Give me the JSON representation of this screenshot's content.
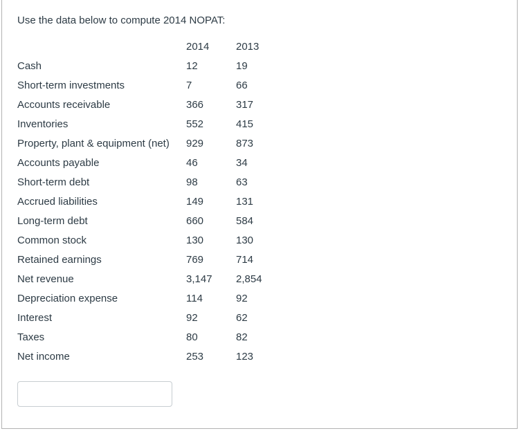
{
  "question": {
    "prompt": "Use the data below to compute 2014 NOPAT:"
  },
  "table": {
    "columns": [
      "",
      "2014",
      "2013"
    ],
    "rows": [
      {
        "label": "Cash",
        "y2014": "12",
        "y2013": "19"
      },
      {
        "label": "Short-term investments",
        "y2014": "7",
        "y2013": "66"
      },
      {
        "label": "Accounts receivable",
        "y2014": "366",
        "y2013": "317"
      },
      {
        "label": "Inventories",
        "y2014": "552",
        "y2013": "415"
      },
      {
        "label": "Property, plant & equipment (net)",
        "y2014": "929",
        "y2013": "873"
      },
      {
        "label": "Accounts payable",
        "y2014": "46",
        "y2013": "34"
      },
      {
        "label": "Short-term debt",
        "y2014": "98",
        "y2013": "63"
      },
      {
        "label": "Accrued liabilities",
        "y2014": "149",
        "y2013": "131"
      },
      {
        "label": "Long-term debt",
        "y2014": "660",
        "y2013": "584"
      },
      {
        "label": "Common stock",
        "y2014": "130",
        "y2013": "130"
      },
      {
        "label": "Retained earnings",
        "y2014": "769",
        "y2013": "714"
      },
      {
        "label": "Net revenue",
        "y2014": "3,147",
        "y2013": "2,854"
      },
      {
        "label": "Depreciation expense",
        "y2014": "114",
        "y2013": "92"
      },
      {
        "label": "Interest",
        "y2014": "92",
        "y2013": "62"
      },
      {
        "label": "Taxes",
        "y2014": "80",
        "y2013": "82"
      },
      {
        "label": "Net income",
        "y2014": "253",
        "y2013": "123"
      }
    ]
  },
  "answer_input": {
    "value": "",
    "placeholder": ""
  },
  "colors": {
    "text": "#2d3b45",
    "frame_border": "#b2b2b2",
    "input_border": "#c7cdd1"
  }
}
